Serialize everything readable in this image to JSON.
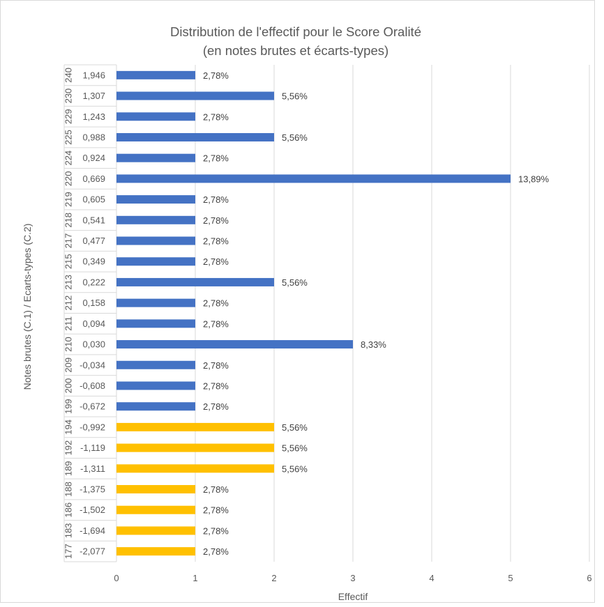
{
  "chart_data": {
    "type": "bar",
    "orientation": "horizontal",
    "title_line1": "Distribution de l'effectif pour le Score Oralité",
    "title_line2": "(en notes brutes et écarts-types)",
    "xlabel": "Effectif",
    "ylabel": "Notes brutes (C.1) / Ecarts-types (C.2)",
    "xlim": [
      0,
      6
    ],
    "xticks": [
      "0",
      "1",
      "2",
      "3",
      "4",
      "5",
      "6"
    ],
    "grid": true,
    "colors": {
      "above": "#4472C4",
      "below": "#FFC000"
    },
    "categories": [
      {
        "raw": "240",
        "z": "1,946",
        "value": 1,
        "label": "2,78%",
        "group": "above"
      },
      {
        "raw": "230",
        "z": "1,307",
        "value": 2,
        "label": "5,56%",
        "group": "above"
      },
      {
        "raw": "229",
        "z": "1,243",
        "value": 1,
        "label": "2,78%",
        "group": "above"
      },
      {
        "raw": "225",
        "z": "0,988",
        "value": 2,
        "label": "5,56%",
        "group": "above"
      },
      {
        "raw": "224",
        "z": "0,924",
        "value": 1,
        "label": "2,78%",
        "group": "above"
      },
      {
        "raw": "220",
        "z": "0,669",
        "value": 5,
        "label": "13,89%",
        "group": "above"
      },
      {
        "raw": "219",
        "z": "0,605",
        "value": 1,
        "label": "2,78%",
        "group": "above"
      },
      {
        "raw": "218",
        "z": "0,541",
        "value": 1,
        "label": "2,78%",
        "group": "above"
      },
      {
        "raw": "217",
        "z": "0,477",
        "value": 1,
        "label": "2,78%",
        "group": "above"
      },
      {
        "raw": "215",
        "z": "0,349",
        "value": 1,
        "label": "2,78%",
        "group": "above"
      },
      {
        "raw": "213",
        "z": "0,222",
        "value": 2,
        "label": "5,56%",
        "group": "above"
      },
      {
        "raw": "212",
        "z": "0,158",
        "value": 1,
        "label": "2,78%",
        "group": "above"
      },
      {
        "raw": "211",
        "z": "0,094",
        "value": 1,
        "label": "2,78%",
        "group": "above"
      },
      {
        "raw": "210",
        "z": "0,030",
        "value": 3,
        "label": "8,33%",
        "group": "above"
      },
      {
        "raw": "209",
        "z": "-0,034",
        "value": 1,
        "label": "2,78%",
        "group": "above"
      },
      {
        "raw": "200",
        "z": "-0,608",
        "value": 1,
        "label": "2,78%",
        "group": "above"
      },
      {
        "raw": "199",
        "z": "-0,672",
        "value": 1,
        "label": "2,78%",
        "group": "above"
      },
      {
        "raw": "194",
        "z": "-0,992",
        "value": 2,
        "label": "5,56%",
        "group": "below"
      },
      {
        "raw": "192",
        "z": "-1,119",
        "value": 2,
        "label": "5,56%",
        "group": "below"
      },
      {
        "raw": "189",
        "z": "-1,311",
        "value": 2,
        "label": "5,56%",
        "group": "below"
      },
      {
        "raw": "188",
        "z": "-1,375",
        "value": 1,
        "label": "2,78%",
        "group": "below"
      },
      {
        "raw": "186",
        "z": "-1,502",
        "value": 1,
        "label": "2,78%",
        "group": "below"
      },
      {
        "raw": "183",
        "z": "-1,694",
        "value": 1,
        "label": "2,78%",
        "group": "below"
      },
      {
        "raw": "177",
        "z": "-2,077",
        "value": 1,
        "label": "2,78%",
        "group": "below"
      }
    ]
  }
}
